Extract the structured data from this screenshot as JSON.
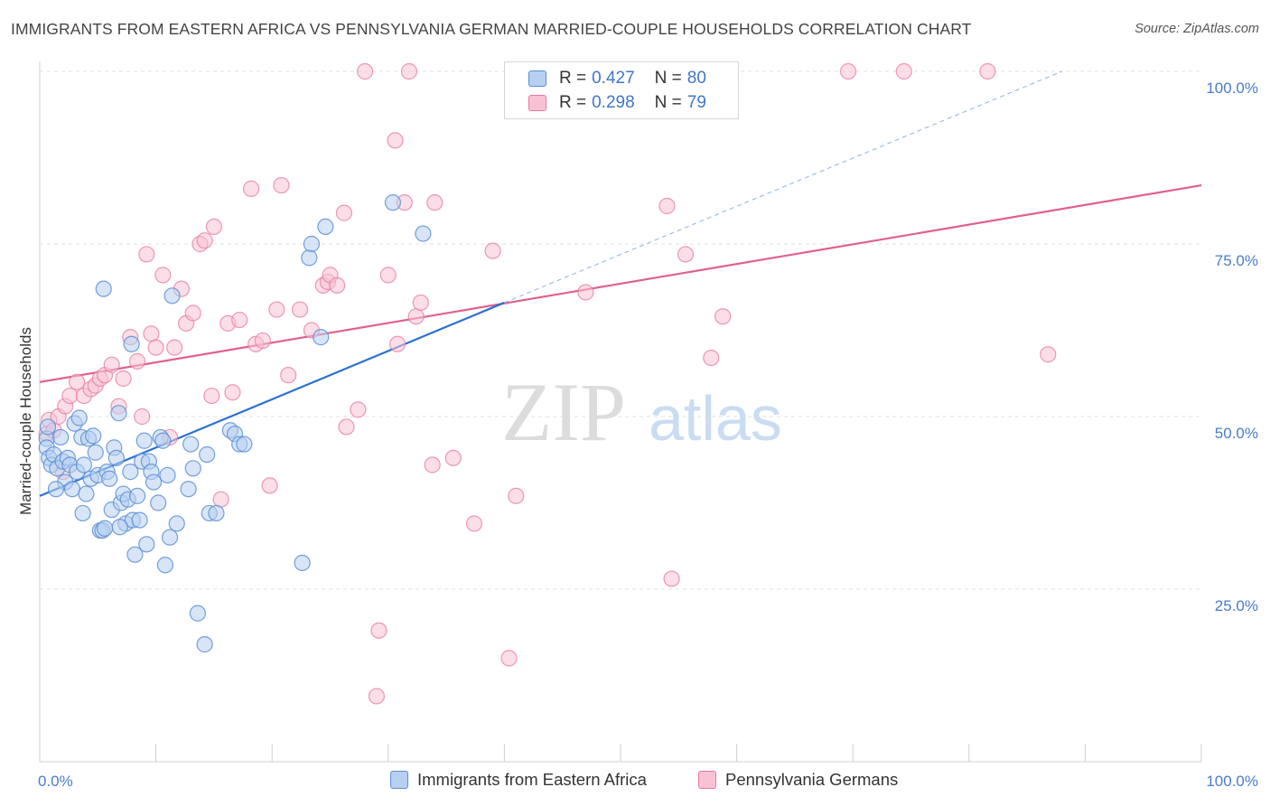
{
  "title": "IMMIGRANTS FROM EASTERN AFRICA VS PENNSYLVANIA GERMAN MARRIED-COUPLE HOUSEHOLDS CORRELATION CHART",
  "source": "Source: ZipAtlas.com",
  "watermark": {
    "zip": "ZIP",
    "atlas": "atlas"
  },
  "colors": {
    "blue": "#5b8fd6",
    "blue_fill": "#b8d0f0",
    "blue_line": "#2b72d0",
    "pink": "#e8789e",
    "pink_fill": "#f7c3d4",
    "pink_line": "#e0608c",
    "axis_text": "#4a7cc9",
    "grid": "#e2e2e2"
  },
  "legend": {
    "rows": [
      {
        "r_label": "R =",
        "r_value": "0.427",
        "n_label": "N =",
        "n_value": "80"
      },
      {
        "r_label": "R =",
        "r_value": "0.298",
        "n_label": "N =",
        "n_value": "79"
      }
    ]
  },
  "bottom_legend": [
    "Immigrants from Eastern Africa",
    "Pennsylvania Germans"
  ],
  "chart_data": {
    "type": "scatter",
    "title": "IMMIGRANTS FROM EASTERN AFRICA VS PENNSYLVANIA GERMAN MARRIED-COUPLE HOUSEHOLDS CORRELATION CHART",
    "xlabel": "",
    "ylabel": "Married-couple Households",
    "xlim": [
      0,
      100
    ],
    "ylim": [
      0,
      100
    ],
    "x_tick_labels": [
      "0.0%",
      "100.0%"
    ],
    "y_tick_labels": [
      "25.0%",
      "50.0%",
      "75.0%",
      "100.0%"
    ],
    "y_ticks": [
      25,
      50,
      75,
      100
    ],
    "grid": true,
    "legend_position": "top-center",
    "series": [
      {
        "name": "Immigrants from Eastern Africa",
        "R": 0.427,
        "N": 80,
        "trend": {
          "x0": 0,
          "y0": 38.5,
          "x1": 40,
          "y1": 66.5,
          "dashed_to_x": 88,
          "dashed_to_y": 100
        },
        "points": [
          [
            0.6,
            46.8
          ],
          [
            0.6,
            45.5
          ],
          [
            0.8,
            44.0
          ],
          [
            1.0,
            43.0
          ],
          [
            1.2,
            44.5
          ],
          [
            1.5,
            42.5
          ],
          [
            1.8,
            47.0
          ],
          [
            2.0,
            43.5
          ],
          [
            2.2,
            40.5
          ],
          [
            2.4,
            44.0
          ],
          [
            2.6,
            43.0
          ],
          [
            2.8,
            39.5
          ],
          [
            3.0,
            49.0
          ],
          [
            3.2,
            42.0
          ],
          [
            3.4,
            49.8
          ],
          [
            3.6,
            47.0
          ],
          [
            3.8,
            43.0
          ],
          [
            4.0,
            38.8
          ],
          [
            4.2,
            46.8
          ],
          [
            4.4,
            41.0
          ],
          [
            4.6,
            47.2
          ],
          [
            4.8,
            44.8
          ],
          [
            5.0,
            41.5
          ],
          [
            5.2,
            33.5
          ],
          [
            5.4,
            33.5
          ],
          [
            5.6,
            33.8
          ],
          [
            5.8,
            42.0
          ],
          [
            6.0,
            41.0
          ],
          [
            6.2,
            36.5
          ],
          [
            6.4,
            45.5
          ],
          [
            6.6,
            44.0
          ],
          [
            6.8,
            50.5
          ],
          [
            7.0,
            37.5
          ],
          [
            7.2,
            38.8
          ],
          [
            7.4,
            34.5
          ],
          [
            7.6,
            38.0
          ],
          [
            7.8,
            42.0
          ],
          [
            8.0,
            35.0
          ],
          [
            8.2,
            30.0
          ],
          [
            8.4,
            38.5
          ],
          [
            8.6,
            35.0
          ],
          [
            8.8,
            43.5
          ],
          [
            9.0,
            46.5
          ],
          [
            9.2,
            31.5
          ],
          [
            9.4,
            43.5
          ],
          [
            9.6,
            42.0
          ],
          [
            9.8,
            40.5
          ],
          [
            10.2,
            37.5
          ],
          [
            10.4,
            47.0
          ],
          [
            10.6,
            46.5
          ],
          [
            10.8,
            28.5
          ],
          [
            11.0,
            41.5
          ],
          [
            11.2,
            32.5
          ],
          [
            11.4,
            67.5
          ],
          [
            11.8,
            34.5
          ],
          [
            5.5,
            68.5
          ],
          [
            7.9,
            60.5
          ],
          [
            12.8,
            39.5
          ],
          [
            13.0,
            46.0
          ],
          [
            13.2,
            42.5
          ],
          [
            13.6,
            21.5
          ],
          [
            14.2,
            17.0
          ],
          [
            14.4,
            44.5
          ],
          [
            14.6,
            36.0
          ],
          [
            15.2,
            36.0
          ],
          [
            16.4,
            48.0
          ],
          [
            16.8,
            47.5
          ],
          [
            17.2,
            46.0
          ],
          [
            17.6,
            46.0
          ],
          [
            22.6,
            28.8
          ],
          [
            23.2,
            73.0
          ],
          [
            23.4,
            75.0
          ],
          [
            24.2,
            61.5
          ],
          [
            24.6,
            77.5
          ],
          [
            30.4,
            81.0
          ],
          [
            33.0,
            76.5
          ],
          [
            1.4,
            39.5
          ],
          [
            0.7,
            48.5
          ],
          [
            3.7,
            36.0
          ],
          [
            6.9,
            34.0
          ]
        ]
      },
      {
        "name": "Pennsylvania Germans",
        "R": 0.298,
        "N": 79,
        "trend": {
          "x0": 0,
          "y0": 55.0,
          "x1": 100,
          "y1": 83.5
        },
        "points": [
          [
            0.6,
            47.5
          ],
          [
            0.8,
            49.5
          ],
          [
            1.2,
            48.0
          ],
          [
            1.6,
            50.0
          ],
          [
            2.2,
            51.5
          ],
          [
            2.6,
            53.0
          ],
          [
            3.2,
            55.0
          ],
          [
            3.8,
            53.0
          ],
          [
            4.4,
            54.0
          ],
          [
            4.8,
            54.5
          ],
          [
            5.2,
            55.5
          ],
          [
            5.6,
            56.0
          ],
          [
            6.2,
            57.5
          ],
          [
            6.8,
            51.5
          ],
          [
            7.2,
            55.5
          ],
          [
            7.8,
            61.5
          ],
          [
            8.4,
            58.0
          ],
          [
            8.8,
            50.0
          ],
          [
            9.2,
            73.5
          ],
          [
            9.6,
            62.0
          ],
          [
            10.0,
            60.0
          ],
          [
            10.6,
            70.5
          ],
          [
            11.2,
            47.0
          ],
          [
            11.6,
            60.0
          ],
          [
            12.2,
            68.5
          ],
          [
            12.6,
            63.5
          ],
          [
            13.2,
            65.0
          ],
          [
            13.8,
            75.0
          ],
          [
            14.2,
            75.5
          ],
          [
            14.8,
            53.0
          ],
          [
            15.0,
            77.5
          ],
          [
            15.6,
            38.0
          ],
          [
            16.2,
            63.5
          ],
          [
            16.6,
            53.5
          ],
          [
            17.2,
            64.0
          ],
          [
            18.6,
            60.5
          ],
          [
            18.2,
            83.0
          ],
          [
            19.2,
            61.0
          ],
          [
            19.8,
            40.0
          ],
          [
            20.4,
            65.5
          ],
          [
            20.8,
            83.5
          ],
          [
            21.4,
            56.0
          ],
          [
            22.4,
            65.5
          ],
          [
            23.4,
            62.5
          ],
          [
            24.4,
            69.0
          ],
          [
            24.8,
            69.5
          ],
          [
            25.0,
            70.5
          ],
          [
            25.6,
            69.0
          ],
          [
            26.2,
            79.5
          ],
          [
            26.4,
            48.5
          ],
          [
            27.4,
            51.0
          ],
          [
            28.0,
            100.0
          ],
          [
            29.2,
            19.0
          ],
          [
            29.0,
            9.5
          ],
          [
            30.0,
            70.5
          ],
          [
            30.6,
            90.0
          ],
          [
            30.8,
            60.5
          ],
          [
            31.4,
            81.0
          ],
          [
            31.8,
            100.0
          ],
          [
            32.4,
            64.5
          ],
          [
            32.8,
            66.5
          ],
          [
            33.8,
            43.0
          ],
          [
            34.0,
            81.0
          ],
          [
            35.6,
            44.0
          ],
          [
            37.4,
            34.5
          ],
          [
            39.0,
            74.0
          ],
          [
            40.4,
            15.0
          ],
          [
            41.0,
            38.5
          ],
          [
            47.0,
            68.0
          ],
          [
            54.0,
            80.5
          ],
          [
            54.4,
            26.5
          ],
          [
            55.6,
            73.5
          ],
          [
            57.8,
            58.5
          ],
          [
            58.8,
            64.5
          ],
          [
            69.6,
            100.0
          ],
          [
            74.4,
            100.0
          ],
          [
            81.6,
            100.0
          ],
          [
            86.8,
            59.0
          ],
          [
            2.0,
            42.0
          ]
        ]
      }
    ]
  }
}
